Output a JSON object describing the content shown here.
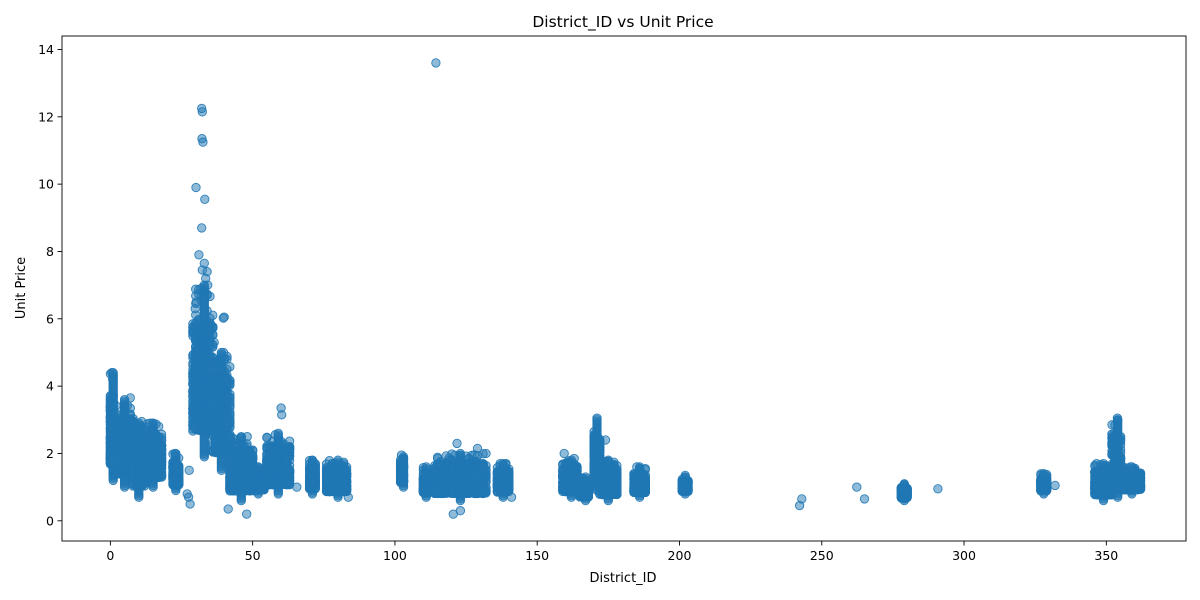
{
  "chart_data": {
    "type": "scatter",
    "title": "District_ID vs Unit Price",
    "xlabel": "District_ID",
    "ylabel": "Unit Price",
    "xlim": [
      -17,
      378
    ],
    "ylim": [
      -0.6,
      14.4
    ],
    "xticks": [
      0,
      50,
      100,
      150,
      200,
      250,
      300,
      350
    ],
    "yticks": [
      0,
      2,
      4,
      6,
      8,
      10,
      12,
      14
    ],
    "grid": false,
    "legend": "none",
    "point_color": "#1f77b4",
    "point_alpha": 0.5,
    "clusters": [
      {
        "district_range": [
          0,
          1
        ],
        "unit_price_range": [
          1.2,
          4.4
        ]
      },
      {
        "district_range": [
          1,
          8
        ],
        "unit_price_range": [
          1.0,
          3.6
        ]
      },
      {
        "district_range": [
          8,
          12
        ],
        "unit_price_range": [
          0.7,
          2.9
        ]
      },
      {
        "district_range": [
          12,
          18
        ],
        "unit_price_range": [
          1.0,
          2.9
        ]
      },
      {
        "district_range": [
          22,
          24
        ],
        "unit_price_range": [
          0.9,
          2.0
        ]
      },
      {
        "district_range": [
          29,
          36
        ],
        "unit_price_range": [
          1.9,
          7.0
        ]
      },
      {
        "district_range": [
          36,
          42
        ],
        "unit_price_range": [
          1.5,
          5.0
        ]
      },
      {
        "district_range": [
          42,
          50
        ],
        "unit_price_range": [
          0.6,
          2.5
        ]
      },
      {
        "district_range": [
          50,
          54
        ],
        "unit_price_range": [
          0.8,
          1.6
        ]
      },
      {
        "district_range": [
          55,
          63
        ],
        "unit_price_range": [
          0.8,
          2.6
        ]
      },
      {
        "district_range": [
          70,
          72
        ],
        "unit_price_range": [
          0.8,
          1.8
        ]
      },
      {
        "district_range": [
          76,
          83
        ],
        "unit_price_range": [
          0.7,
          1.8
        ]
      },
      {
        "district_range": [
          102,
          103
        ],
        "unit_price_range": [
          1.0,
          1.9
        ]
      },
      {
        "district_range": [
          110,
          112
        ],
        "unit_price_range": [
          0.7,
          1.6
        ]
      },
      {
        "district_range": [
          114,
          132
        ],
        "unit_price_range": [
          0.6,
          2.0
        ]
      },
      {
        "district_range": [
          136,
          140
        ],
        "unit_price_range": [
          0.7,
          1.7
        ]
      },
      {
        "district_range": [
          159,
          164
        ],
        "unit_price_range": [
          0.7,
          1.8
        ]
      },
      {
        "district_range": [
          165,
          168
        ],
        "unit_price_range": [
          0.6,
          1.3
        ]
      },
      {
        "district_range": [
          170,
          172
        ],
        "unit_price_range": [
          0.9,
          3.0
        ]
      },
      {
        "district_range": [
          172,
          178
        ],
        "unit_price_range": [
          0.6,
          1.8
        ]
      },
      {
        "district_range": [
          184,
          188
        ],
        "unit_price_range": [
          0.7,
          1.6
        ]
      },
      {
        "district_range": [
          201,
          203
        ],
        "unit_price_range": [
          0.8,
          1.3
        ]
      },
      {
        "district_range": [
          278,
          280
        ],
        "unit_price_range": [
          0.6,
          1.1
        ]
      },
      {
        "district_range": [
          327,
          329
        ],
        "unit_price_range": [
          0.8,
          1.4
        ]
      },
      {
        "district_range": [
          346,
          352
        ],
        "unit_price_range": [
          0.6,
          1.7
        ]
      },
      {
        "district_range": [
          352,
          355
        ],
        "unit_price_range": [
          0.7,
          3.0
        ]
      },
      {
        "district_range": [
          355,
          362
        ],
        "unit_price_range": [
          0.8,
          1.6
        ]
      }
    ],
    "points": [
      [
        114.4,
        13.6
      ],
      [
        32.1,
        12.25
      ],
      [
        32.3,
        12.15
      ],
      [
        32.2,
        11.35
      ],
      [
        32.5,
        11.25
      ],
      [
        30.1,
        9.9
      ],
      [
        33.2,
        9.55
      ],
      [
        32.1,
        8.7
      ],
      [
        31.1,
        7.9
      ],
      [
        33.0,
        7.65
      ],
      [
        34.0,
        7.4
      ],
      [
        32.3,
        7.45
      ],
      [
        33.5,
        7.2
      ],
      [
        34.2,
        7.0
      ],
      [
        31.8,
        6.9
      ],
      [
        30.2,
        6.5
      ],
      [
        29.8,
        6.3
      ],
      [
        40.0,
        6.05
      ],
      [
        39.7,
        6.02
      ],
      [
        31.0,
        5.95
      ],
      [
        36.5,
        5.3
      ],
      [
        39.8,
        5.0
      ],
      [
        40.2,
        4.8
      ],
      [
        0.5,
        4.4
      ],
      [
        0.8,
        4.2
      ],
      [
        7.0,
        3.65
      ],
      [
        11.0,
        2.95
      ],
      [
        14.0,
        2.9
      ],
      [
        60.0,
        3.35
      ],
      [
        60.2,
        3.15
      ],
      [
        42.0,
        2.45
      ],
      [
        48.1,
        2.5
      ],
      [
        55.6,
        2.25
      ],
      [
        121.8,
        2.3
      ],
      [
        129.0,
        2.15
      ],
      [
        102.3,
        1.95
      ],
      [
        159.5,
        2.0
      ],
      [
        163.0,
        1.85
      ],
      [
        174.0,
        2.4
      ],
      [
        171.0,
        3.05
      ],
      [
        353.9,
        3.05
      ],
      [
        22.7,
        2.0
      ],
      [
        27.7,
        1.5
      ],
      [
        27.0,
        0.8
      ],
      [
        27.5,
        0.7
      ],
      [
        28.0,
        0.5
      ],
      [
        41.4,
        0.35
      ],
      [
        47.9,
        0.2
      ],
      [
        120.5,
        0.2
      ],
      [
        123.0,
        0.3
      ],
      [
        65.5,
        1.0
      ],
      [
        83.6,
        0.7
      ],
      [
        141.0,
        0.7
      ],
      [
        242.2,
        0.45
      ],
      [
        243.0,
        0.65
      ],
      [
        262.3,
        1.0
      ],
      [
        265.0,
        0.65
      ],
      [
        290.8,
        0.95
      ],
      [
        332.0,
        1.05
      ],
      [
        346.6,
        1.7
      ],
      [
        358.5,
        1.6
      ],
      [
        361.0,
        1.0
      ],
      [
        188.0,
        1.55
      ],
      [
        185.0,
        1.6
      ],
      [
        202.0,
        1.35
      ]
    ]
  }
}
